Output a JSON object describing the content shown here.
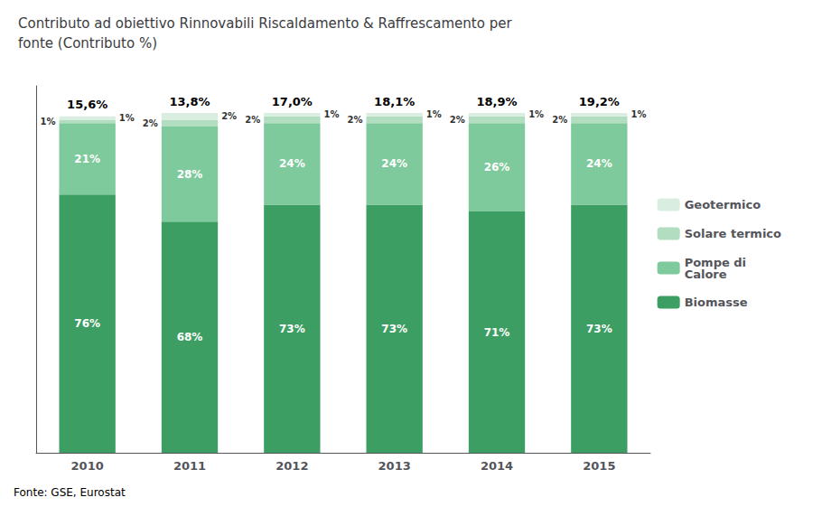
{
  "chart_data": {
    "type": "bar",
    "stacked": true,
    "title": "Contributo ad obiettivo Rinnovabili Riscaldamento & Raffrescamento per\nfonte (Contributo %)",
    "categories": [
      "2010",
      "2011",
      "2012",
      "2013",
      "2014",
      "2015"
    ],
    "series": [
      {
        "name": "Biomasse",
        "color": "#3d9e64",
        "values": [
          76,
          68,
          73,
          73,
          71,
          73
        ],
        "value_labels": [
          "76%",
          "68%",
          "73%",
          "73%",
          "71%",
          "73%"
        ]
      },
      {
        "name": "Pompe di\nCalore",
        "color": "#7eca9c",
        "values": [
          21,
          28,
          24,
          24,
          26,
          24
        ],
        "value_labels": [
          "21%",
          "28%",
          "24%",
          "24%",
          "26%",
          "24%"
        ]
      },
      {
        "name": "Solare termico",
        "color": "#b2ddc0",
        "values": [
          1,
          2,
          2,
          2,
          2,
          2
        ],
        "value_labels": [
          "1%",
          "2%",
          "2%",
          "2%",
          "2%",
          "2%"
        ]
      },
      {
        "name": "Geotermico",
        "color": "#d9eee1",
        "values": [
          1,
          2,
          1,
          1,
          1,
          1
        ],
        "value_labels": [
          "1%",
          "2%",
          "1%",
          "1%",
          "1%",
          "1%"
        ]
      }
    ],
    "annotations": [
      {
        "x": "2010",
        "text": "15,6%"
      },
      {
        "x": "2011",
        "text": "13,8%"
      },
      {
        "x": "2012",
        "text": "17,0%"
      },
      {
        "x": "2013",
        "text": "18,1%"
      },
      {
        "x": "2014",
        "text": "18,9%"
      },
      {
        "x": "2015",
        "text": "19,2%"
      },
      {
        "text": "Fonte: GSE, Eurostat"
      }
    ],
    "ylim": [
      0,
      108
    ],
    "data_labels": true,
    "tick_labels": "x",
    "grid": false,
    "legend": "right"
  }
}
